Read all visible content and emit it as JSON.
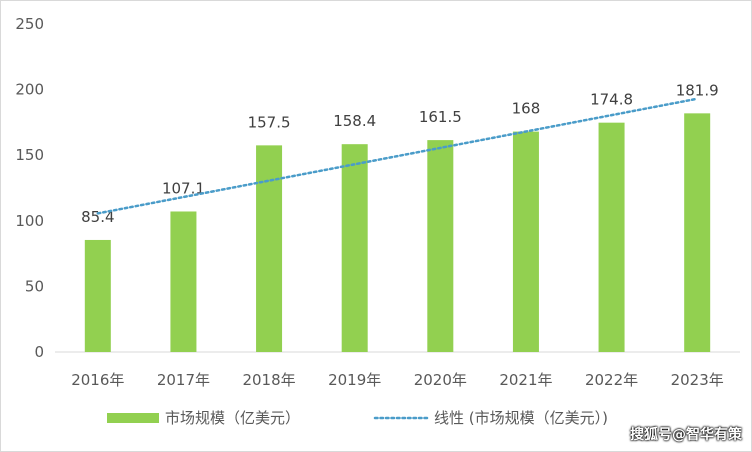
{
  "chart_data": {
    "type": "bar",
    "categories": [
      "2016年",
      "2017年",
      "2018年",
      "2019年",
      "2020年",
      "2021年",
      "2022年",
      "2023年"
    ],
    "series": [
      {
        "name": "市场规模（亿美元）",
        "values": [
          85.4,
          107.1,
          157.5,
          158.4,
          161.5,
          168,
          174.8,
          181.9
        ],
        "labels": [
          "85.4",
          "107.1",
          "157.5",
          "158.4",
          "161.5",
          "168",
          "174.8",
          "181.9"
        ],
        "color": "#92d050"
      }
    ],
    "trendline": {
      "name": "线性 (市场规模（亿美元）)",
      "type": "linear",
      "color": "#4a9cc9"
    },
    "ylim": [
      0,
      250
    ],
    "yticks": [
      "0",
      "50",
      "100",
      "150",
      "200",
      "250"
    ],
    "ytick_values": [
      0,
      50,
      100,
      150,
      200,
      250
    ],
    "grid": false,
    "legend": "bottom"
  },
  "watermark": "搜狐号@智华有策"
}
